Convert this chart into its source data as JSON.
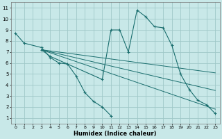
{
  "xlabel": "Humidex (Indice chaleur)",
  "background_color": "#c8e8e8",
  "grid_color": "#a0c8c8",
  "line_color": "#1a6e6e",
  "xlim": [
    -0.5,
    23.5
  ],
  "ylim": [
    0.5,
    11.5
  ],
  "xticks": [
    0,
    1,
    2,
    3,
    4,
    5,
    6,
    7,
    8,
    9,
    10,
    11,
    12,
    13,
    14,
    15,
    16,
    17,
    18,
    19,
    20,
    21,
    22,
    23
  ],
  "yticks": [
    1,
    2,
    3,
    4,
    5,
    6,
    7,
    8,
    9,
    10,
    11
  ],
  "line1_x": [
    0,
    1,
    3,
    4,
    5,
    6,
    7,
    8,
    9,
    10,
    11
  ],
  "line1_y": [
    8.7,
    7.8,
    7.4,
    6.5,
    6.0,
    5.9,
    4.8,
    3.3,
    2.5,
    2.0,
    1.2
  ],
  "line2_x": [
    3,
    4,
    10,
    11,
    12,
    13,
    14,
    15,
    16,
    17,
    18,
    19,
    20,
    21,
    22,
    23
  ],
  "line2_y": [
    7.2,
    6.6,
    4.5,
    9.0,
    9.0,
    7.0,
    10.8,
    10.2,
    9.3,
    9.2,
    7.6,
    5.0,
    3.6,
    2.6,
    2.2,
    1.4
  ],
  "trend1_x": [
    3,
    23
  ],
  "trend1_y": [
    7.2,
    5.1
  ],
  "trend2_x": [
    3,
    23
  ],
  "trend2_y": [
    7.2,
    3.5
  ],
  "trend3_x": [
    3,
    23
  ],
  "trend3_y": [
    7.2,
    1.8
  ]
}
